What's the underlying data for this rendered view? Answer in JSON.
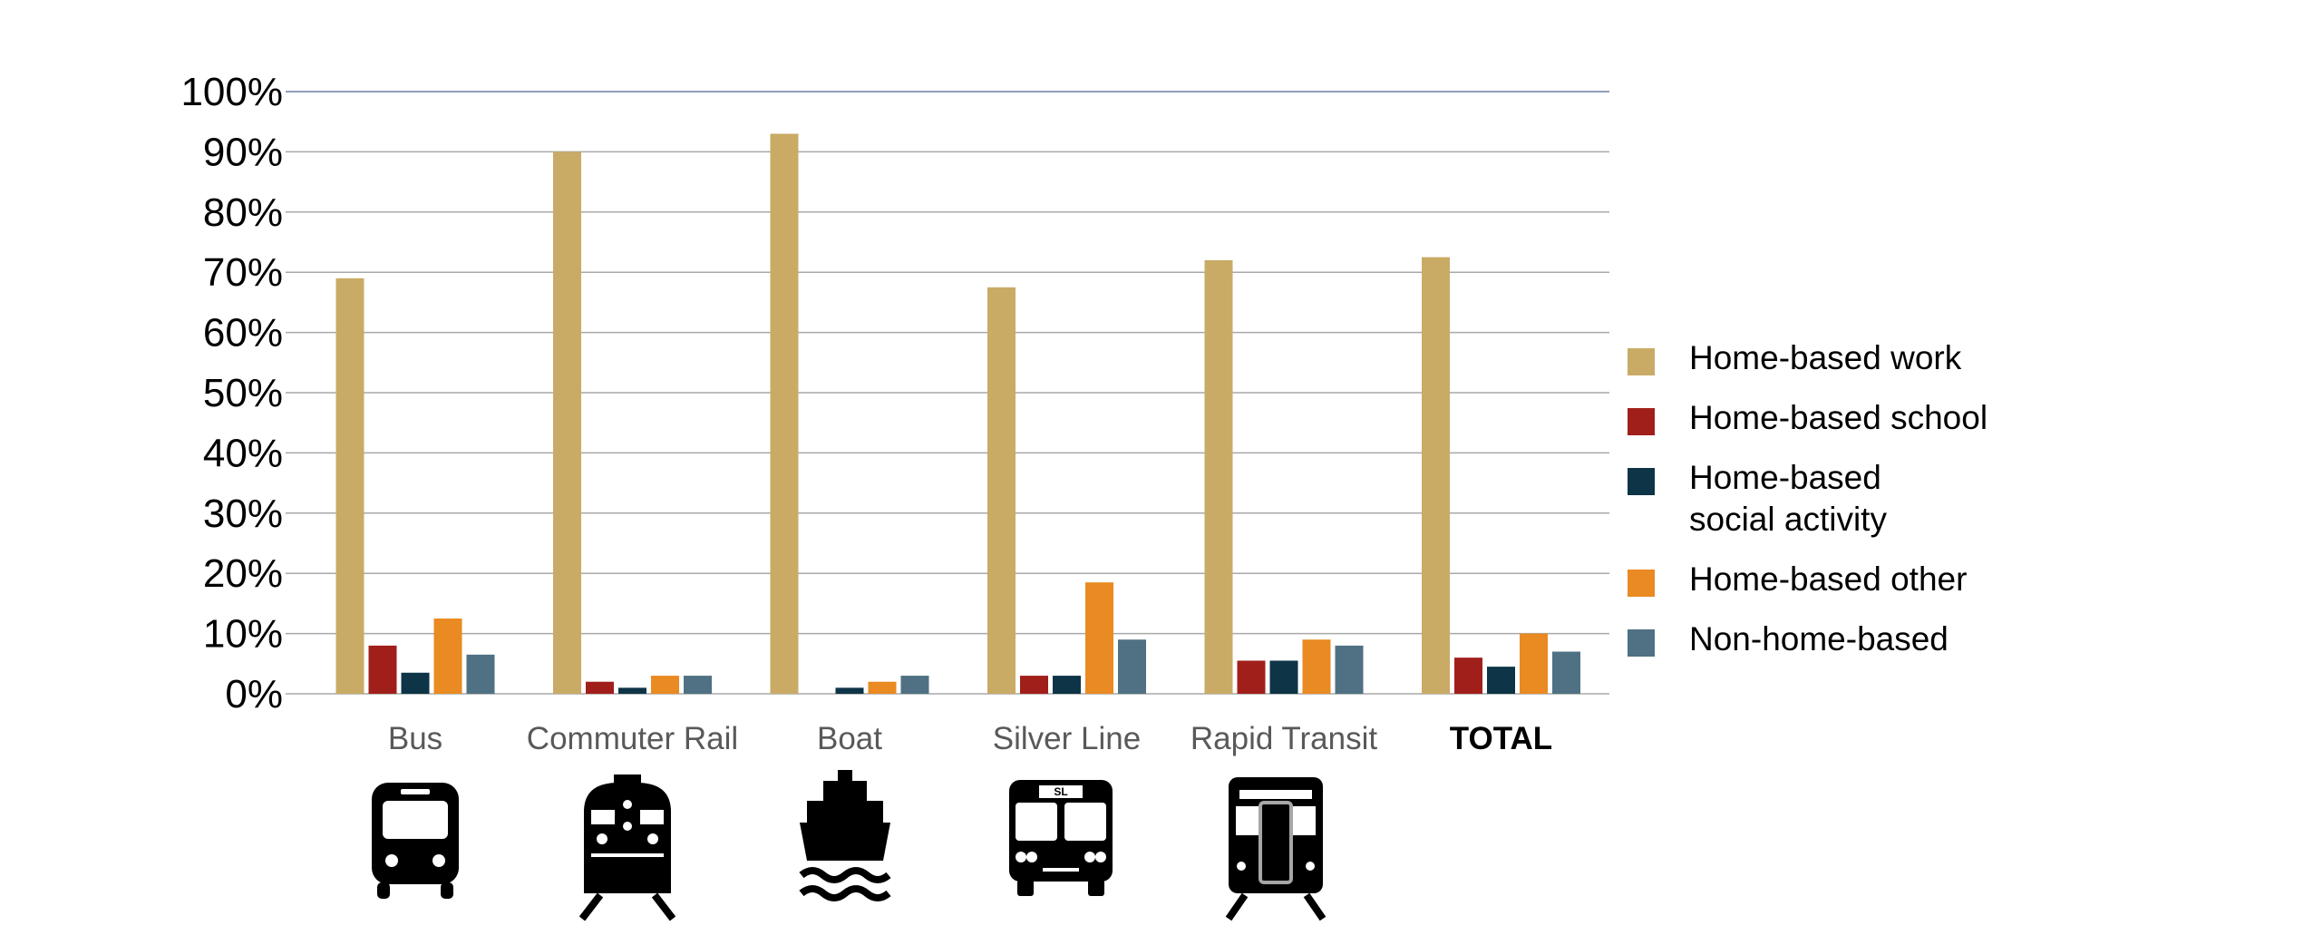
{
  "chart_data": {
    "type": "bar",
    "title": "",
    "xlabel": "",
    "ylabel": "",
    "ylim": [
      0,
      100
    ],
    "yticks": [
      "0%",
      "10%",
      "20%",
      "30%",
      "40%",
      "50%",
      "60%",
      "70%",
      "80%",
      "90%",
      "100%"
    ],
    "categories": [
      "Bus",
      "Commuter Rail",
      "Boat",
      "Silver Line",
      "Rapid Transit",
      "TOTAL"
    ],
    "category_icons": [
      "bus-icon",
      "commuter-rail-train-icon",
      "boat-icon",
      "silver-line-bus-icon",
      "rapid-transit-train-icon",
      ""
    ],
    "series": [
      {
        "name": "Home-based work",
        "color": "#c9ab66",
        "values": [
          69,
          90,
          93,
          67.5,
          72,
          72.5
        ]
      },
      {
        "name": "Home-based school",
        "color": "#a11f1a",
        "values": [
          8,
          2,
          0,
          3,
          5.5,
          6
        ]
      },
      {
        "name": "Home-based\nsocial activity",
        "color": "#0d3447",
        "values": [
          3.5,
          1,
          1,
          3,
          5.5,
          4.5
        ]
      },
      {
        "name": "Home-based other",
        "color": "#e98a22",
        "values": [
          12.5,
          3,
          2,
          18.5,
          9,
          10
        ]
      },
      {
        "name": "Non-home-based",
        "color": "#4f7183",
        "values": [
          6.5,
          3,
          3,
          9,
          8,
          7
        ]
      }
    ],
    "grid": true,
    "legend_position": "right"
  }
}
